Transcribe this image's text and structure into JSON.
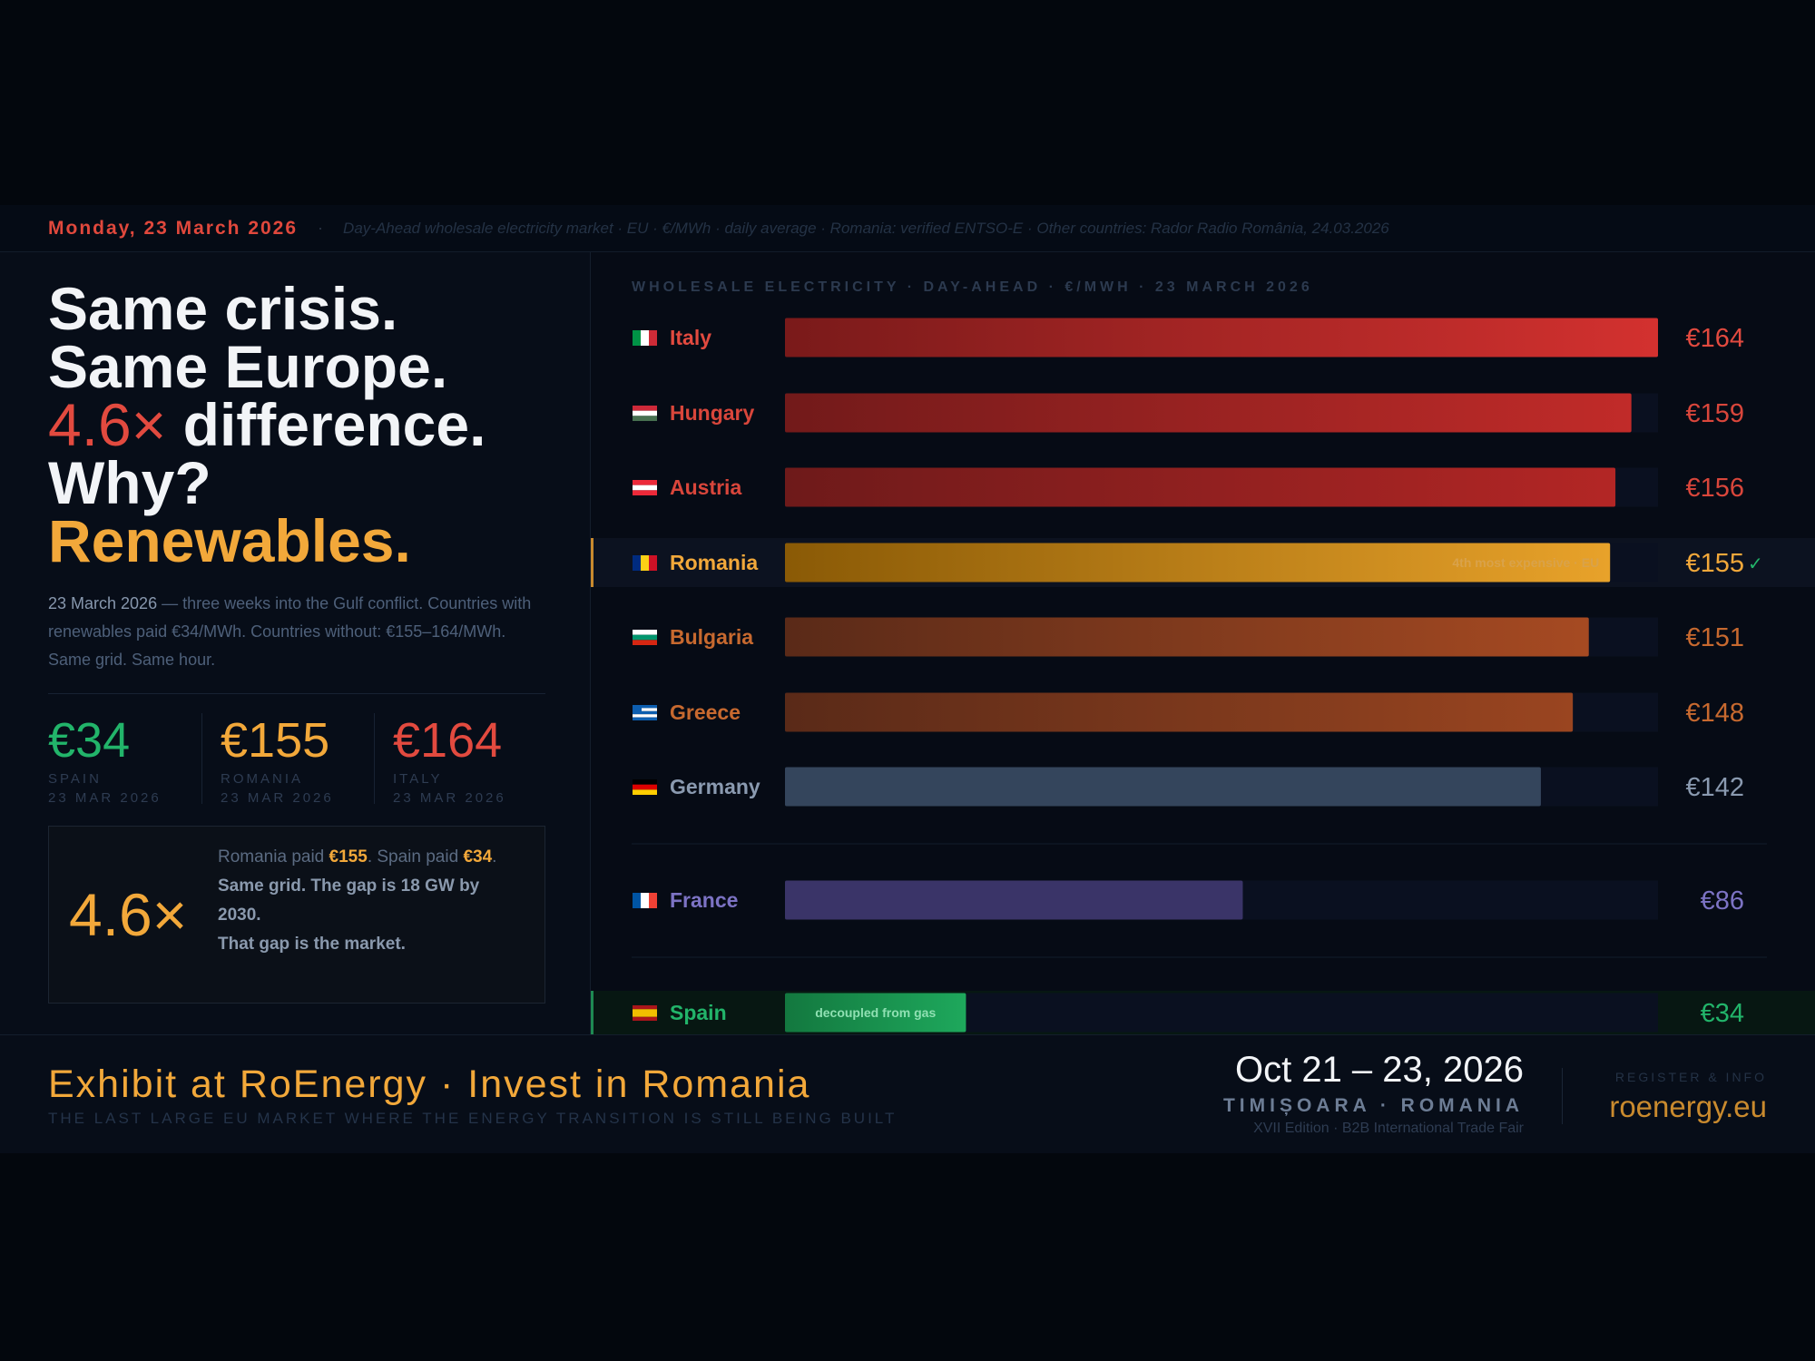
{
  "topbar": {
    "date": "Monday, 23 March 2026",
    "separator": "·",
    "source": "Day-Ahead wholesale electricity market · EU · €/MWh · daily average · Romania: verified ENTSO-E · Other countries: Rador Radio România, 24.03.2026"
  },
  "headline": {
    "line1": "Same crisis.",
    "line2": "Same Europe.",
    "line3a": "4.6×",
    "line3b": " difference.",
    "line4": "Why?",
    "line5": "Renewables."
  },
  "intro": {
    "lead": "23 March 2026",
    "text": " — three weeks into the Gulf conflict. Countries with renewables paid €34/MWh. Countries without: €155–164/MWh. Same grid. Same hour."
  },
  "stats": [
    {
      "value": "€34",
      "label": "SPAIN",
      "date": "23 MAR 2026",
      "color": "#22b46a"
    },
    {
      "value": "€155",
      "label": "ROMANIA",
      "date": "23 MAR 2026",
      "color": "#f2a83a"
    },
    {
      "value": "€164",
      "label": "ITALY",
      "date": "23 MAR 2026",
      "color": "#e24a3f"
    }
  ],
  "callout": {
    "multiplier": "4.6×",
    "t1": "Romania paid ",
    "t2": "€155",
    "t3": ". Spain paid ",
    "t4": "€34",
    "t5": ".",
    "t6": "Same grid. The gap is 18 GW by 2030.",
    "t7": "That gap is the market."
  },
  "chart_data": {
    "type": "bar",
    "orientation": "horizontal",
    "title": "WHOLESALE ELECTRICITY · DAY-AHEAD · €/MWH · 23 MARCH 2026",
    "unit": "€/MWh",
    "categories": [
      "Italy",
      "Hungary",
      "Austria",
      "Romania",
      "Bulgaria",
      "Greece",
      "Germany",
      "France",
      "Spain"
    ],
    "values": [
      164,
      159,
      156,
      155,
      151,
      148,
      142,
      86,
      34
    ],
    "value_labels": [
      "€164",
      "€159",
      "€156",
      "€155",
      "€151",
      "€148",
      "€142",
      "€86",
      "€34"
    ],
    "xlim": [
      0,
      164
    ],
    "annotations": [
      {
        "category": "Romania",
        "text": "4th most expensive · EU",
        "suffix": "✓"
      },
      {
        "category": "Spain",
        "text": "decoupled from gas"
      }
    ],
    "colors": {
      "Italy": "#d3312f",
      "Hungary": "#c12b29",
      "Austria": "#b32625",
      "Romania": "#e8a22a",
      "Bulgaria": "#a64a22",
      "Greece": "#9a4520",
      "Germany": "#34455c",
      "France": "#3a3468",
      "Spain": "#1ea85c"
    },
    "label_colors": {
      "Italy": "#e24a3f",
      "Hungary": "#d9463b",
      "Austria": "#d9463b",
      "Romania": "#f2a83a",
      "Bulgaria": "#c7692f",
      "Greece": "#c7692f",
      "Germany": "#8a9ab0",
      "France": "#7c73c4",
      "Spain": "#22b46a"
    },
    "flags": {
      "Italy": [
        "#009246",
        "#ffffff",
        "#ce2b37"
      ],
      "Hungary": [
        "#ce2939",
        "#ffffff",
        "#477050"
      ],
      "Austria": [
        "#ed2939",
        "#ffffff",
        "#ed2939"
      ],
      "Romania": [
        "#002b7f",
        "#fcd116",
        "#ce1126"
      ],
      "Bulgaria": [
        "#ffffff",
        "#00966e",
        "#d62612"
      ],
      "Greece": [
        "#0d5eaf",
        "#ffffff",
        "#0d5eaf"
      ],
      "Germany": [
        "#000000",
        "#dd0000",
        "#ffce00"
      ],
      "France": [
        "#0055a4",
        "#ffffff",
        "#ef4135"
      ],
      "Spain": [
        "#aa151b",
        "#f1bf00",
        "#aa151b"
      ]
    }
  },
  "footer": {
    "cta": "Exhibit at RoEnergy · Invest in Romania",
    "tagline": "THE LAST LARGE EU MARKET WHERE THE ENERGY TRANSITION IS STILL BEING BUILT",
    "dates": "Oct 21 – 23, 2026",
    "city": "TIMIȘOARA · ROMANIA",
    "edition": "XVII Edition · B2B International Trade Fair",
    "register": "REGISTER & INFO",
    "website": "roenergy.eu"
  }
}
